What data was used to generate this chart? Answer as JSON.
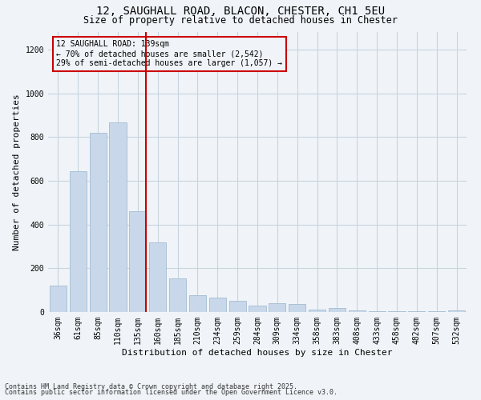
{
  "title_line1": "12, SAUGHALL ROAD, BLACON, CHESTER, CH1 5EU",
  "title_line2": "Size of property relative to detached houses in Chester",
  "xlabel": "Distribution of detached houses by size in Chester",
  "ylabel": "Number of detached properties",
  "annotation_title": "12 SAUGHALL ROAD: 139sqm",
  "annotation_line2": "← 70% of detached houses are smaller (2,542)",
  "annotation_line3": "29% of semi-detached houses are larger (1,057) →",
  "footnote_line1": "Contains HM Land Registry data © Crown copyright and database right 2025.",
  "footnote_line2": "Contains public sector information licensed under the Open Government Licence v3.0.",
  "bar_color": "#c8d8ea",
  "bar_edge_color": "#9ab4cc",
  "redline_color": "#cc0000",
  "annotation_box_edgecolor": "#cc0000",
  "background_color": "#f0f4f8",
  "grid_color": "#c8d4de",
  "categories": [
    "36sqm",
    "61sqm",
    "85sqm",
    "110sqm",
    "135sqm",
    "160sqm",
    "185sqm",
    "210sqm",
    "234sqm",
    "259sqm",
    "284sqm",
    "309sqm",
    "334sqm",
    "358sqm",
    "383sqm",
    "408sqm",
    "433sqm",
    "458sqm",
    "482sqm",
    "507sqm",
    "532sqm"
  ],
  "values": [
    120,
    645,
    820,
    865,
    460,
    320,
    155,
    75,
    65,
    50,
    30,
    40,
    35,
    10,
    20,
    8,
    5,
    5,
    5,
    5,
    8
  ],
  "ylim": [
    0,
    1280
  ],
  "yticks": [
    0,
    200,
    400,
    600,
    800,
    1000,
    1200
  ],
  "redline_index": 4,
  "title_fontsize": 10,
  "subtitle_fontsize": 8.5,
  "tick_fontsize": 7,
  "label_fontsize": 8,
  "footnote_fontsize": 6
}
